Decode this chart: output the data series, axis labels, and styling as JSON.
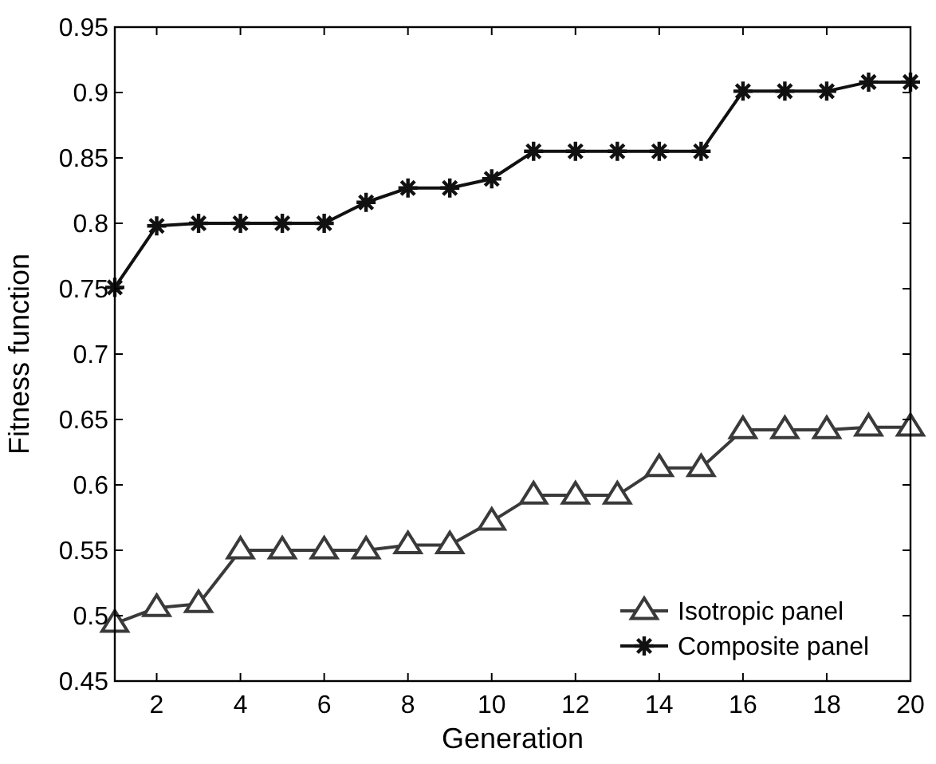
{
  "chart_data": {
    "type": "line",
    "xlabel": "Generation",
    "ylabel": "Fitness function",
    "x": [
      1,
      2,
      3,
      4,
      5,
      6,
      7,
      8,
      9,
      10,
      11,
      12,
      13,
      14,
      15,
      16,
      17,
      18,
      19,
      20
    ],
    "xlim": [
      1,
      20
    ],
    "xticks": [
      2,
      4,
      6,
      8,
      10,
      12,
      14,
      16,
      18,
      20
    ],
    "ylim": [
      0.45,
      0.95
    ],
    "yticks": [
      0.45,
      0.5,
      0.55,
      0.6,
      0.65,
      0.7,
      0.75,
      0.8,
      0.85,
      0.9,
      0.95
    ],
    "grid": false,
    "legend": "bottom right",
    "series": [
      {
        "name": "Isotropic panel",
        "color": "#3a3a3a",
        "marker": "triangle",
        "values": [
          0.494,
          0.506,
          0.509,
          0.55,
          0.55,
          0.55,
          0.55,
          0.554,
          0.554,
          0.572,
          0.592,
          0.592,
          0.592,
          0.613,
          0.613,
          0.642,
          0.642,
          0.642,
          0.644,
          0.644
        ]
      },
      {
        "name": "Composite panel",
        "color": "#111111",
        "marker": "cross",
        "values": [
          0.751,
          0.798,
          0.8,
          0.8,
          0.8,
          0.8,
          0.816,
          0.827,
          0.827,
          0.834,
          0.855,
          0.855,
          0.855,
          0.855,
          0.855,
          0.901,
          0.901,
          0.901,
          0.908,
          0.908
        ]
      }
    ]
  }
}
